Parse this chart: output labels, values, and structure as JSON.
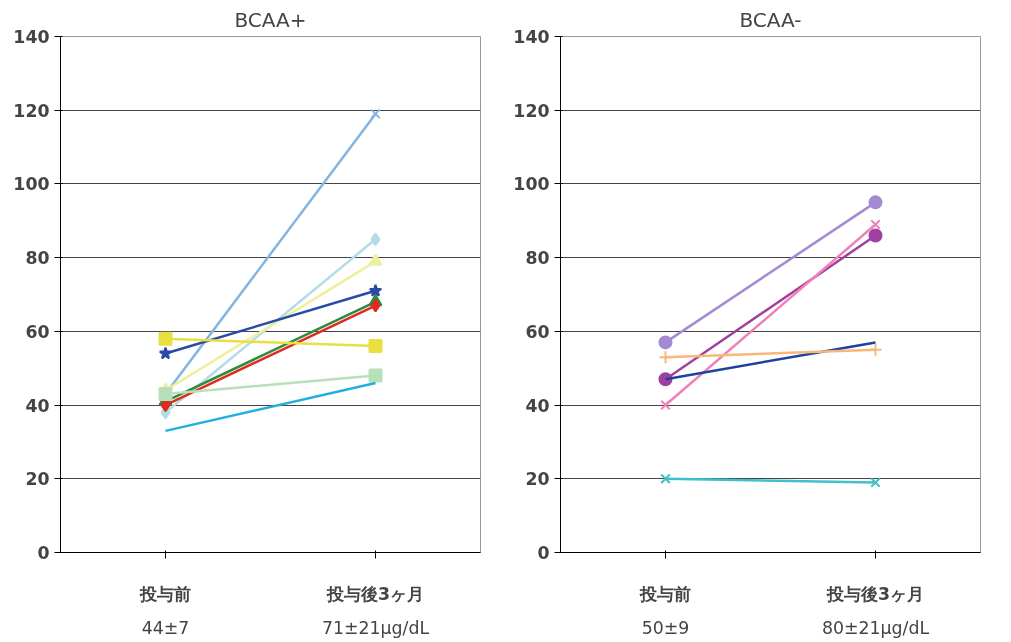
{
  "chart_data": [
    {
      "type": "line",
      "title": "BCAA+",
      "categories": [
        "投与前",
        "投与後3ヶ月"
      ],
      "ylim": [
        0,
        140
      ],
      "yticks": [
        0,
        20,
        40,
        60,
        80,
        100,
        120,
        140
      ],
      "grid": "y",
      "annotations": [
        "44±7",
        "71±21μg/dL"
      ],
      "series": [
        {
          "color": "#85b4e0",
          "marker": "x",
          "values": [
            43,
            119
          ]
        },
        {
          "color": "#b0dde8",
          "marker": "diamond",
          "values": [
            38,
            85
          ]
        },
        {
          "color": "#eef0a0",
          "marker": "triangle",
          "values": [
            44,
            79
          ]
        },
        {
          "color": "#2a4aa8",
          "marker": "star",
          "values": [
            54,
            71
          ]
        },
        {
          "color": "#2e8b3e",
          "marker": "triangle",
          "values": [
            41,
            68
          ]
        },
        {
          "color": "#e02a20",
          "marker": "diamond",
          "values": [
            40,
            67
          ]
        },
        {
          "color": "#e8e040",
          "marker": "square",
          "values": [
            58,
            56
          ]
        },
        {
          "color": "#b8e0b8",
          "marker": "square",
          "values": [
            43,
            48
          ]
        },
        {
          "color": "#20b0e0",
          "marker": "none",
          "values": [
            33,
            46
          ]
        }
      ]
    },
    {
      "type": "line",
      "title": "BCAA-",
      "categories": [
        "投与前",
        "投与後3ヶ月"
      ],
      "ylim": [
        0,
        140
      ],
      "yticks": [
        0,
        20,
        40,
        60,
        80,
        100,
        120,
        140
      ],
      "grid": "y",
      "annotations": [
        "50±9",
        "80±21μg/dL"
      ],
      "series": [
        {
          "color": "#a48ad0",
          "marker": "circle",
          "values": [
            57,
            95
          ]
        },
        {
          "color": "#a040a0",
          "marker": "circle",
          "values": [
            47,
            86
          ]
        },
        {
          "color": "#f080b8",
          "marker": "x",
          "values": [
            40,
            89
          ]
        },
        {
          "color": "#2040a0",
          "marker": "none",
          "values": [
            47,
            57
          ]
        },
        {
          "color": "#f8b878",
          "marker": "cross",
          "values": [
            53,
            55
          ]
        },
        {
          "color": "#40c0c8",
          "marker": "x",
          "values": [
            20,
            19
          ]
        }
      ]
    }
  ]
}
